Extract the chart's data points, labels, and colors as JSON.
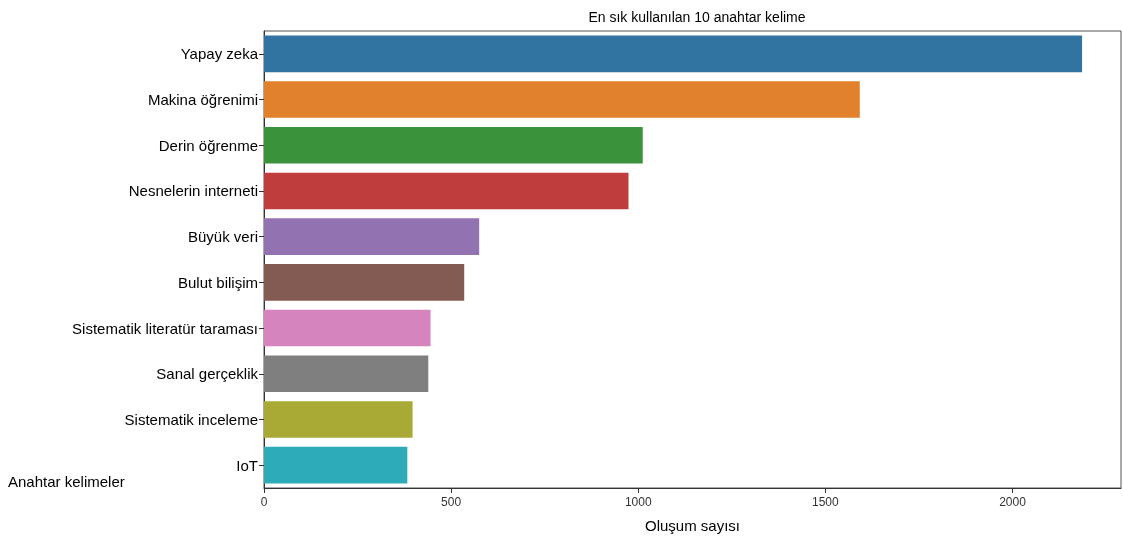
{
  "chart_data": {
    "type": "bar",
    "orientation": "horizontal",
    "title": "En sık kullanılan 10 anahtar kelime",
    "xlabel": "Oluşum sayısı",
    "ylabel": "Anahtar kelimeler",
    "categories": [
      "Yapay zeka",
      "Makina öğrenimi",
      "Derin öğrenme",
      "Nesnelerin interneti",
      "Büyük veri",
      "Bulut bilişim",
      "Sistematik literatür taraması",
      "Sanal gerçeklik",
      "Sistematik inceleme",
      "IoT"
    ],
    "values": [
      2186,
      1592,
      1012,
      974,
      575,
      535,
      445,
      439,
      397,
      383
    ],
    "colors": [
      "#3274a1",
      "#e1812c",
      "#3a923a",
      "#c03d3e",
      "#9372b2",
      "#845b53",
      "#d684bd",
      "#7f7f7f",
      "#a9aa35",
      "#2eabb8"
    ],
    "xlim": [
      0,
      2290
    ],
    "xticks": [
      0,
      500,
      1000,
      1500,
      2000
    ],
    "grid": false
  }
}
